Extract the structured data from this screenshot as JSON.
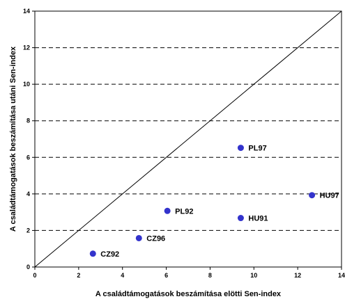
{
  "chart_data": {
    "type": "scatter",
    "xlabel": "A családtámogatások beszámítása elötti Sen-index",
    "ylabel": "A családtámogatások beszámítása utáni Sen-index",
    "xlim": [
      0,
      14
    ],
    "ylim": [
      0,
      14
    ],
    "xticks": [
      0,
      2,
      4,
      6,
      8,
      10,
      12,
      14
    ],
    "yticks": [
      0,
      2,
      4,
      6,
      8,
      10,
      12,
      14
    ],
    "grid": "horizontal dashed",
    "reference_line": "y = x",
    "marker_color": "#3333cc",
    "points": [
      {
        "label": "CZ92",
        "x": 2.65,
        "y": 0.73
      },
      {
        "label": "CZ96",
        "x": 4.75,
        "y": 1.58
      },
      {
        "label": "PL92",
        "x": 6.05,
        "y": 3.07
      },
      {
        "label": "HU91",
        "x": 9.4,
        "y": 2.68
      },
      {
        "label": "PL97",
        "x": 9.4,
        "y": 6.52
      },
      {
        "label": "HU97",
        "x": 12.65,
        "y": 3.93
      }
    ]
  }
}
